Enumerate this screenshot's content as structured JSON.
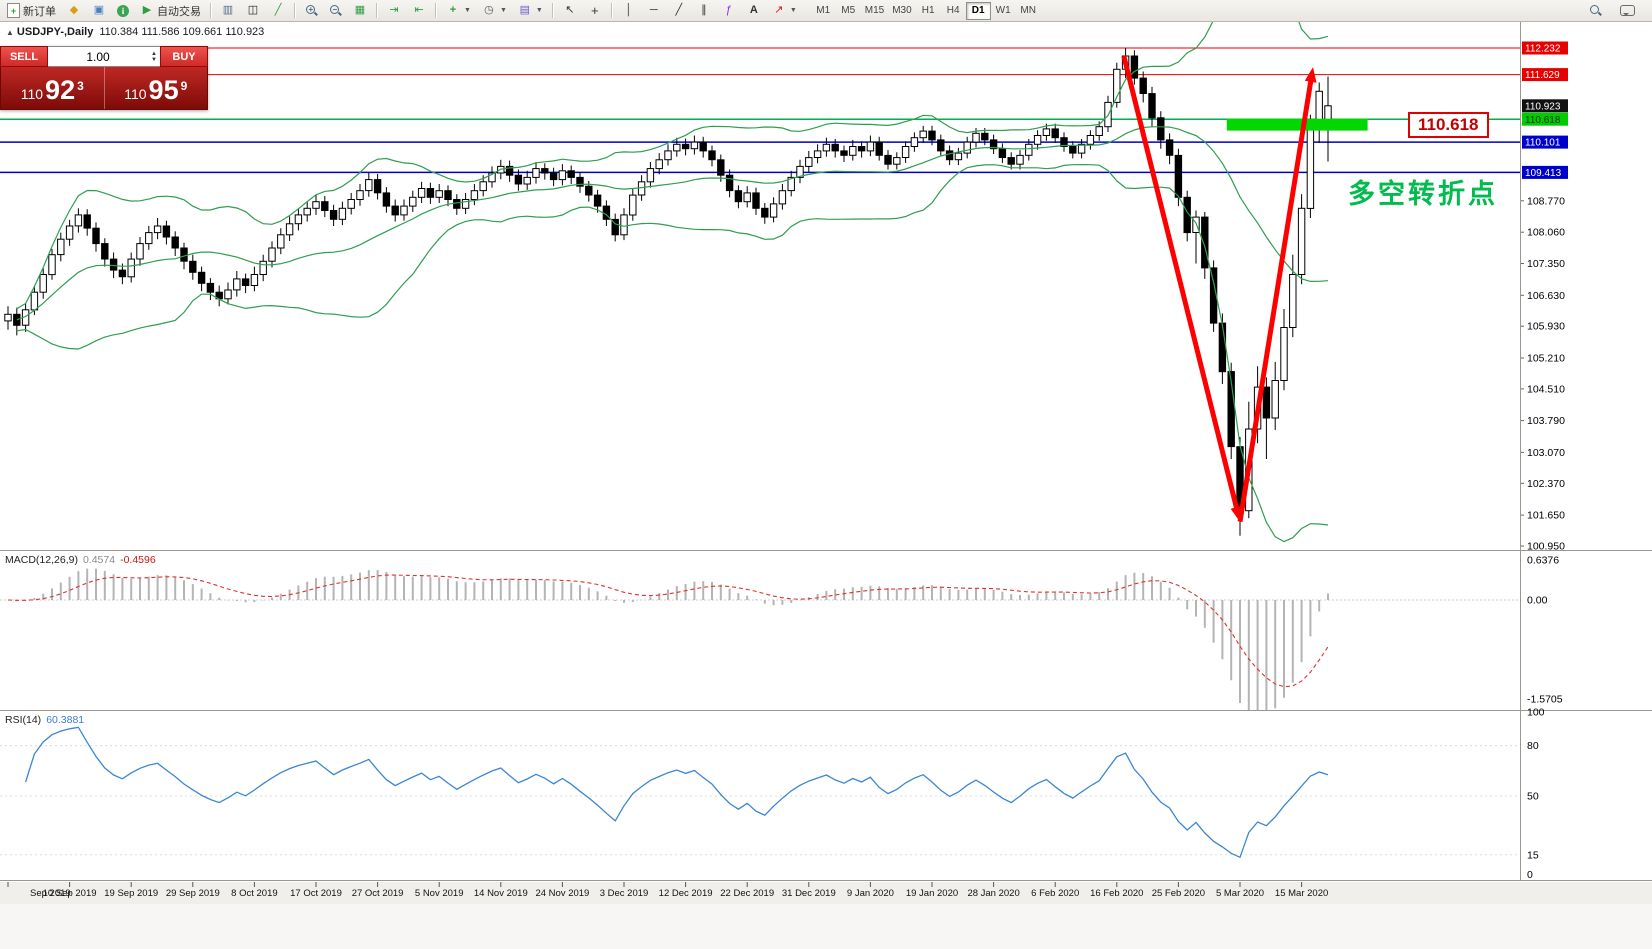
{
  "toolbar": {
    "new_order": "新订单",
    "autotrading": "自动交易",
    "timeframes": [
      "M1",
      "M5",
      "M15",
      "M30",
      "H1",
      "H4",
      "D1",
      "W1",
      "MN"
    ],
    "selected_timeframe": "D1"
  },
  "trade_panel": {
    "sell_label": "SELL",
    "buy_label": "BUY",
    "volume": "1.00",
    "sell_price": {
      "prefix": "110",
      "pips": "92",
      "pipette": "3"
    },
    "buy_price": {
      "prefix": "110",
      "pips": "95",
      "pipette": "9"
    }
  },
  "chart_header": {
    "symbol": "USDJPY-,Daily",
    "ohlc": "110.384 111.586 109.661 110.923"
  },
  "annotations": {
    "price_label": "110.618",
    "turning_point": "多空转折点"
  },
  "macd_panel": {
    "label": "MACD(12,26,9)",
    "value_main": "0.4574",
    "value_signal": "-0.4596",
    "scale": [
      "0.6376",
      "0.00",
      "-1.5705"
    ]
  },
  "rsi_panel": {
    "label": "RSI(14)",
    "value": "60.3881",
    "scale": [
      "100",
      "80",
      "50",
      "15",
      "0"
    ]
  },
  "price_scale": {
    "badges": [
      {
        "text": "112.232",
        "price": 112.232,
        "bg": "#e60000",
        "fg": "#ffffff"
      },
      {
        "text": "111.629",
        "price": 111.629,
        "bg": "#e60000",
        "fg": "#ffffff"
      },
      {
        "text": "110.923",
        "price": 110.923,
        "bg": "#111111",
        "fg": "#ffffff"
      },
      {
        "text": "110.618",
        "price": 110.618,
        "bg": "#00cc00",
        "fg": "#003300"
      },
      {
        "text": "110.101",
        "price": 110.101,
        "bg": "#0000cc",
        "fg": "#ffffff"
      },
      {
        "text": "109.413",
        "price": 109.413,
        "bg": "#0000cc",
        "fg": "#ffffff"
      }
    ],
    "ticks": [
      "108.770",
      "108.060",
      "107.350",
      "106.630",
      "105.930",
      "105.210",
      "104.510",
      "103.790",
      "103.070",
      "102.370",
      "101.650",
      "100.950"
    ]
  },
  "time_axis": [
    "Sep 2019",
    "10 Sep 2019",
    "19 Sep 2019",
    "29 Sep 2019",
    "8 Oct 2019",
    "17 Oct 2019",
    "27 Oct 2019",
    "5 Nov 2019",
    "14 Nov 2019",
    "24 Nov 2019",
    "3 Dec 2019",
    "12 Dec 2019",
    "22 Dec 2019",
    "31 Dec 2019",
    "9 Jan 2020",
    "19 Jan 2020",
    "28 Jan 2020",
    "6 Feb 2020",
    "16 Feb 2020",
    "25 Feb 2020",
    "5 Mar 2020",
    "15 Mar 2020"
  ],
  "chart_data": {
    "type": "candlestick",
    "symbol": "USDJPY",
    "timeframe": "Daily",
    "price_axis": {
      "min": 100.95,
      "max": 112.232
    },
    "levels": [
      {
        "price": 112.232,
        "color": "#e60000",
        "width": 1
      },
      {
        "price": 111.629,
        "color": "#e60000",
        "width": 1
      },
      {
        "price": 110.618,
        "color": "#00b050",
        "width": 1.5
      },
      {
        "price": 110.101,
        "color": "#0000cc",
        "width": 1.5
      },
      {
        "price": 109.413,
        "color": "#0000cc",
        "width": 1.5
      }
    ],
    "highlight_zone": {
      "from_candle": 138.5,
      "to_candle": 154.5,
      "top_price": 110.63,
      "bottom_price": 110.36,
      "color": "#00d800"
    },
    "arrows": [
      {
        "from": [
          126.8,
          112.05
        ],
        "to": [
          140,
          101.5
        ],
        "color": "#ff0000"
      },
      {
        "from": [
          140,
          101.5
        ],
        "to": [
          148.3,
          111.8
        ],
        "color": "#ff0000"
      }
    ],
    "indicators": {
      "bollinger": {
        "period": 20,
        "deviation": 2,
        "color": "#2f9e4f"
      },
      "macd": {
        "fast": 12,
        "slow": 26,
        "signal": 9
      },
      "rsi": {
        "period": 14
      }
    },
    "candles": [
      [
        106.05,
        106.38,
        105.85,
        106.2
      ],
      [
        106.2,
        106.35,
        105.72,
        105.95
      ],
      [
        105.95,
        106.45,
        105.8,
        106.3
      ],
      [
        106.3,
        106.85,
        106.18,
        106.7
      ],
      [
        106.7,
        107.25,
        106.55,
        107.1
      ],
      [
        107.1,
        107.68,
        106.98,
        107.55
      ],
      [
        107.55,
        108.05,
        107.4,
        107.9
      ],
      [
        107.9,
        108.34,
        107.75,
        108.2
      ],
      [
        108.2,
        108.6,
        108.05,
        108.45
      ],
      [
        108.45,
        108.58,
        107.98,
        108.15
      ],
      [
        108.15,
        108.28,
        107.62,
        107.8
      ],
      [
        107.8,
        107.92,
        107.28,
        107.45
      ],
      [
        107.45,
        107.6,
        107.02,
        107.2
      ],
      [
        107.2,
        107.35,
        106.88,
        107.05
      ],
      [
        107.05,
        107.6,
        106.92,
        107.45
      ],
      [
        107.45,
        107.95,
        107.3,
        107.8
      ],
      [
        107.8,
        108.2,
        107.66,
        108.05
      ],
      [
        108.05,
        108.38,
        107.9,
        108.2
      ],
      [
        108.2,
        108.32,
        107.78,
        107.95
      ],
      [
        107.95,
        108.08,
        107.52,
        107.7
      ],
      [
        107.7,
        107.82,
        107.22,
        107.4
      ],
      [
        107.4,
        107.55,
        106.98,
        107.15
      ],
      [
        107.15,
        107.28,
        106.72,
        106.9
      ],
      [
        106.9,
        107.02,
        106.52,
        106.7
      ],
      [
        106.7,
        106.85,
        106.38,
        106.55
      ],
      [
        106.55,
        106.92,
        106.42,
        106.75
      ],
      [
        106.75,
        107.18,
        106.6,
        107.0
      ],
      [
        107.0,
        107.12,
        106.68,
        106.85
      ],
      [
        106.85,
        107.28,
        106.72,
        107.1
      ],
      [
        107.1,
        107.55,
        106.95,
        107.4
      ],
      [
        107.4,
        107.85,
        107.26,
        107.7
      ],
      [
        107.7,
        108.15,
        107.56,
        108.0
      ],
      [
        108.0,
        108.42,
        107.86,
        108.25
      ],
      [
        108.25,
        108.6,
        108.1,
        108.45
      ],
      [
        108.45,
        108.75,
        108.3,
        108.6
      ],
      [
        108.6,
        108.9,
        108.45,
        108.75
      ],
      [
        108.75,
        108.88,
        108.4,
        108.55
      ],
      [
        108.55,
        108.68,
        108.2,
        108.35
      ],
      [
        108.35,
        108.75,
        108.22,
        108.6
      ],
      [
        108.6,
        108.95,
        108.46,
        108.8
      ],
      [
        108.8,
        109.15,
        108.66,
        109.0
      ],
      [
        109.0,
        109.4,
        108.86,
        109.25
      ],
      [
        109.25,
        109.38,
        108.8,
        108.95
      ],
      [
        108.95,
        109.08,
        108.5,
        108.65
      ],
      [
        108.65,
        108.8,
        108.3,
        108.45
      ],
      [
        108.45,
        108.8,
        108.32,
        108.65
      ],
      [
        108.65,
        109.0,
        108.52,
        108.85
      ],
      [
        108.85,
        109.2,
        108.72,
        109.05
      ],
      [
        109.05,
        109.18,
        108.7,
        108.85
      ],
      [
        108.85,
        109.15,
        108.72,
        109.0
      ],
      [
        109.0,
        109.12,
        108.65,
        108.8
      ],
      [
        108.8,
        108.92,
        108.45,
        108.6
      ],
      [
        108.6,
        108.95,
        108.47,
        108.8
      ],
      [
        108.8,
        109.15,
        108.67,
        109.0
      ],
      [
        109.0,
        109.35,
        108.87,
        109.2
      ],
      [
        109.2,
        109.55,
        109.07,
        109.4
      ],
      [
        109.4,
        109.7,
        109.26,
        109.55
      ],
      [
        109.55,
        109.68,
        109.2,
        109.35
      ],
      [
        109.35,
        109.48,
        109.0,
        109.15
      ],
      [
        109.15,
        109.45,
        109.02,
        109.3
      ],
      [
        109.3,
        109.65,
        109.16,
        109.5
      ],
      [
        109.5,
        109.62,
        109.25,
        109.4
      ],
      [
        109.4,
        109.52,
        109.1,
        109.25
      ],
      [
        109.25,
        109.6,
        109.12,
        109.45
      ],
      [
        109.45,
        109.57,
        109.15,
        109.3
      ],
      [
        109.3,
        109.42,
        108.95,
        109.1
      ],
      [
        109.1,
        109.22,
        108.75,
        108.9
      ],
      [
        108.9,
        109.02,
        108.5,
        108.65
      ],
      [
        108.65,
        108.78,
        108.2,
        108.35
      ],
      [
        108.35,
        108.48,
        107.85,
        108.0
      ],
      [
        108.0,
        108.6,
        107.88,
        108.45
      ],
      [
        108.45,
        109.05,
        108.32,
        108.9
      ],
      [
        108.9,
        109.35,
        108.77,
        109.2
      ],
      [
        109.2,
        109.65,
        109.07,
        109.5
      ],
      [
        109.5,
        109.85,
        109.37,
        109.7
      ],
      [
        109.7,
        110.05,
        109.57,
        109.9
      ],
      [
        109.9,
        110.2,
        109.77,
        110.05
      ],
      [
        110.05,
        110.18,
        109.8,
        109.95
      ],
      [
        109.95,
        110.25,
        109.82,
        110.1
      ],
      [
        110.1,
        110.22,
        109.75,
        109.9
      ],
      [
        109.9,
        110.02,
        109.55,
        109.7
      ],
      [
        109.7,
        109.82,
        109.2,
        109.35
      ],
      [
        109.35,
        109.48,
        108.85,
        109.0
      ],
      [
        109.0,
        109.12,
        108.6,
        108.75
      ],
      [
        108.75,
        109.1,
        108.62,
        108.95
      ],
      [
        108.95,
        109.07,
        108.45,
        108.6
      ],
      [
        108.6,
        108.72,
        108.25,
        108.4
      ],
      [
        108.4,
        108.85,
        108.28,
        108.7
      ],
      [
        108.7,
        109.15,
        108.57,
        109.0
      ],
      [
        109.0,
        109.45,
        108.87,
        109.3
      ],
      [
        109.3,
        109.7,
        109.17,
        109.55
      ],
      [
        109.55,
        109.9,
        109.42,
        109.75
      ],
      [
        109.75,
        110.05,
        109.62,
        109.9
      ],
      [
        109.9,
        110.2,
        109.77,
        110.05
      ],
      [
        110.05,
        110.17,
        109.75,
        109.9
      ],
      [
        109.9,
        110.02,
        109.65,
        109.8
      ],
      [
        109.8,
        110.15,
        109.68,
        110.0
      ],
      [
        110.0,
        110.12,
        109.75,
        109.9
      ],
      [
        109.9,
        110.25,
        109.78,
        110.1
      ],
      [
        110.1,
        110.22,
        109.68,
        109.8
      ],
      [
        109.8,
        109.92,
        109.48,
        109.6
      ],
      [
        109.6,
        109.87,
        109.48,
        109.75
      ],
      [
        109.75,
        110.12,
        109.63,
        110.0
      ],
      [
        110.0,
        110.32,
        109.88,
        110.2
      ],
      [
        110.2,
        110.47,
        110.08,
        110.35
      ],
      [
        110.35,
        110.47,
        110.03,
        110.15
      ],
      [
        110.15,
        110.27,
        109.78,
        109.9
      ],
      [
        109.9,
        110.02,
        109.58,
        109.7
      ],
      [
        109.7,
        109.97,
        109.58,
        109.85
      ],
      [
        109.85,
        110.22,
        109.73,
        110.1
      ],
      [
        110.1,
        110.42,
        109.98,
        110.3
      ],
      [
        110.3,
        110.42,
        110.03,
        110.15
      ],
      [
        110.15,
        110.27,
        109.83,
        109.95
      ],
      [
        109.95,
        110.07,
        109.63,
        109.75
      ],
      [
        109.75,
        109.87,
        109.48,
        109.6
      ],
      [
        109.6,
        109.92,
        109.48,
        109.8
      ],
      [
        109.8,
        110.17,
        109.68,
        110.05
      ],
      [
        110.05,
        110.37,
        109.93,
        110.25
      ],
      [
        110.25,
        110.52,
        110.13,
        110.4
      ],
      [
        110.4,
        110.52,
        110.08,
        110.2
      ],
      [
        110.2,
        110.32,
        109.88,
        110.0
      ],
      [
        110.0,
        110.12,
        109.73,
        109.85
      ],
      [
        109.85,
        110.17,
        109.73,
        110.05
      ],
      [
        110.05,
        110.37,
        109.93,
        110.25
      ],
      [
        110.25,
        110.57,
        110.13,
        110.45
      ],
      [
        110.45,
        111.15,
        110.33,
        111.0
      ],
      [
        111.0,
        111.9,
        110.88,
        111.75
      ],
      [
        111.75,
        112.232,
        111.55,
        112.05
      ],
      [
        112.05,
        112.18,
        111.4,
        111.55
      ],
      [
        111.55,
        111.7,
        111.0,
        111.2
      ],
      [
        111.2,
        111.35,
        110.45,
        110.65
      ],
      [
        110.65,
        110.8,
        109.95,
        110.15
      ],
      [
        110.15,
        110.3,
        109.6,
        109.8
      ],
      [
        109.8,
        109.95,
        108.65,
        108.85
      ],
      [
        108.85,
        109.0,
        107.85,
        108.05
      ],
      [
        108.05,
        108.55,
        107.35,
        108.4
      ],
      [
        108.4,
        108.52,
        107.0,
        107.25
      ],
      [
        107.25,
        107.42,
        105.8,
        106.0
      ],
      [
        106.0,
        106.22,
        104.62,
        104.9
      ],
      [
        104.9,
        105.1,
        102.92,
        103.2
      ],
      [
        103.2,
        103.42,
        101.18,
        101.75
      ],
      [
        101.75,
        104.22,
        101.58,
        103.6
      ],
      [
        103.6,
        105.02,
        103.28,
        104.55
      ],
      [
        104.55,
        104.77,
        102.92,
        103.85
      ],
      [
        103.85,
        105.12,
        103.58,
        104.7
      ],
      [
        104.7,
        106.32,
        104.48,
        105.9
      ],
      [
        105.9,
        107.55,
        105.68,
        107.1
      ],
      [
        107.1,
        108.92,
        106.88,
        108.6
      ],
      [
        108.6,
        110.72,
        108.38,
        110.4
      ],
      [
        110.4,
        111.45,
        110.08,
        111.25
      ],
      [
        110.384,
        111.586,
        109.661,
        110.923
      ]
    ]
  }
}
